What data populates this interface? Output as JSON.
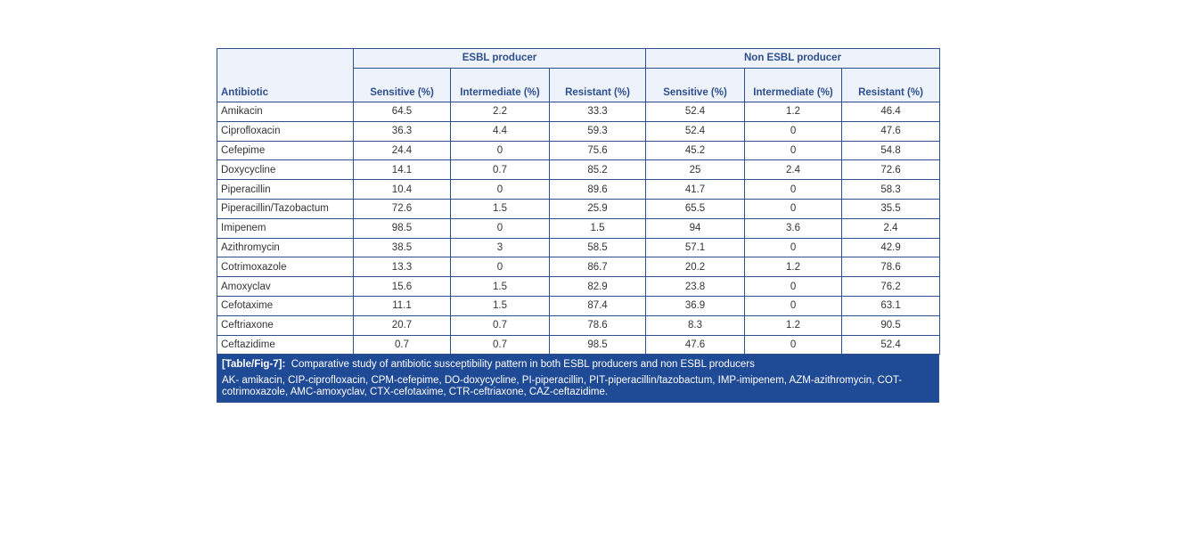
{
  "table": {
    "headers": {
      "antibiotic": "Antibiotic",
      "group1": "ESBL producer",
      "group2": "Non ESBL producer",
      "sensitive1": "Sensitive (%)",
      "intermediate1": "Intermediate (%)",
      "resistant1": "Resistant (%)",
      "sensitive2": "Sensitive (%)",
      "intermediate2": "Intermediate (%)",
      "resistant2": "Resistant (%)"
    },
    "rows": [
      {
        "name": "Amikacin",
        "v": [
          "64.5",
          "2.2",
          "33.3",
          "52.4",
          "1.2",
          "46.4"
        ]
      },
      {
        "name": "Ciprofloxacin",
        "v": [
          "36.3",
          "4.4",
          "59.3",
          "52.4",
          "0",
          "47.6"
        ]
      },
      {
        "name": "Cefepime",
        "v": [
          "24.4",
          "0",
          "75.6",
          "45.2",
          "0",
          "54.8"
        ]
      },
      {
        "name": "Doxycycline",
        "v": [
          "14.1",
          "0.7",
          "85.2",
          "25",
          "2.4",
          "72.6"
        ]
      },
      {
        "name": "Piperacillin",
        "v": [
          "10.4",
          "0",
          "89.6",
          "41.7",
          "0",
          "58.3"
        ]
      },
      {
        "name": "Piperacillin/Tazobactum",
        "v": [
          "72.6",
          "1.5",
          "25.9",
          "65.5",
          "0",
          "35.5"
        ]
      },
      {
        "name": "Imipenem",
        "v": [
          "98.5",
          "0",
          "1.5",
          "94",
          "3.6",
          "2.4"
        ]
      },
      {
        "name": "Azithromycin",
        "v": [
          "38.5",
          "3",
          "58.5",
          "57.1",
          "0",
          "42.9"
        ]
      },
      {
        "name": "Cotrimoxazole",
        "v": [
          "13.3",
          "0",
          "86.7",
          "20.2",
          "1.2",
          "78.6"
        ]
      },
      {
        "name": "Amoxyclav",
        "v": [
          "15.6",
          "1.5",
          "82.9",
          "23.8",
          "0",
          "76.2"
        ]
      },
      {
        "name": "Cefotaxime",
        "v": [
          "11.1",
          "1.5",
          "87.4",
          "36.9",
          "0",
          "63.1"
        ]
      },
      {
        "name": "Ceftriaxone",
        "v": [
          "20.7",
          "0.7",
          "78.6",
          "8.3",
          "1.2",
          "90.5"
        ]
      },
      {
        "name": "Ceftazidime",
        "v": [
          "0.7",
          "0.7",
          "98.5",
          "47.6",
          "0",
          "52.4"
        ]
      }
    ]
  },
  "caption": {
    "label": "[Table/Fig-7]:",
    "text": "Comparative study of antibiotic susceptibility pattern in both ESBL producers and non ESBL producers",
    "abbreviations": "AK- amikacin, CIP-ciprofloxacin, CPM-cefepime, DO-doxycycline, PI-piperacillin, PIT-piperacillin/tazobactum, IMP-imipenem, AZM-azithromycin, COT-cotrimoxazole, AMC-amoxyclav, CTX-cefotaxime, CTR-ceftriaxone, CAZ-ceftazidime."
  },
  "colors": {
    "border": "#2e4f8f",
    "header_text": "#2e4f8f",
    "caption_bg": "#1f4a96"
  }
}
